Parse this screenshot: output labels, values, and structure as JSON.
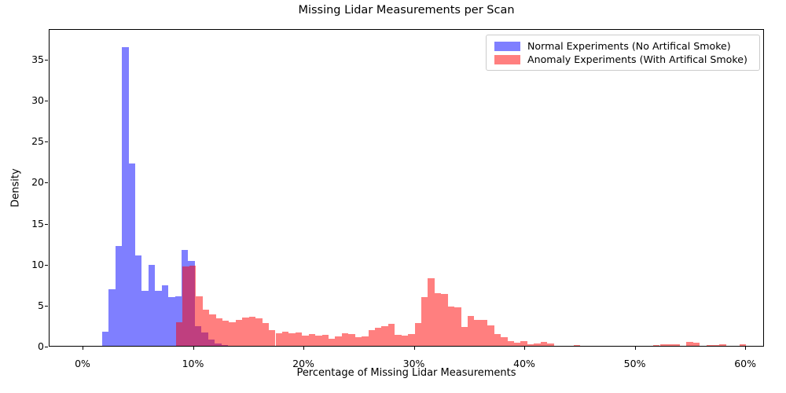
{
  "title": "Missing Lidar Measurements per Scan",
  "x_axis": {
    "label": "Percentage of Missing Lidar Measurements",
    "tick_labels": [
      "0%",
      "10%",
      "20%",
      "30%",
      "40%",
      "50%",
      "60%"
    ],
    "tick_values": [
      0,
      10,
      20,
      30,
      40,
      50,
      60
    ],
    "range_pct": [
      -3.06,
      61.7
    ]
  },
  "y_axis": {
    "label": "Density",
    "tick_labels": [
      "0",
      "5",
      "10",
      "15",
      "20",
      "25",
      "30",
      "35"
    ],
    "tick_values": [
      0,
      5,
      10,
      15,
      20,
      25,
      30,
      35
    ],
    "range": [
      0,
      38.73
    ]
  },
  "legend": {
    "items": [
      {
        "label": "Normal Experiments (No Artifical Smoke)",
        "swatch_color": "rgba(0,0,255,0.5)"
      },
      {
        "label": "Anomaly Experiments (With Artifical Smoke)",
        "swatch_color": "rgba(255,0,0,0.5)"
      }
    ]
  },
  "chart_data": {
    "type": "histogram",
    "title": "Missing Lidar Measurements per Scan",
    "xlabel": "Percentage of Missing Lidar Measurements",
    "ylabel": "Density",
    "xlim_pct": [
      -3.06,
      61.7
    ],
    "ylim": [
      0,
      38.73
    ],
    "grid": false,
    "legend_position": "upper right",
    "overlap_blend": "alpha 0.5 fills, red drawn over blue (overlap renders magenta #bf3f7f)",
    "series": [
      {
        "name": "Normal Experiments (No Artifical Smoke)",
        "fill": "rgba(0,0,255,0.5)",
        "bin_start_pct": 1.7,
        "bin_width_pct": 0.6,
        "densities": [
          1.9,
          7.1,
          12.4,
          36.6,
          22.4,
          11.2,
          6.9,
          10.1,
          6.9,
          7.6,
          6.1,
          6.2,
          11.9,
          10.5,
          2.6,
          1.8,
          1.0,
          0.5,
          0.3,
          0.2,
          0.15,
          0.1
        ]
      },
      {
        "name": "Anomaly Experiments (With Artifical Smoke)",
        "fill": "rgba(255,0,0,0.5)",
        "bin_start_pct": 8.4,
        "bin_width_pct": 0.6,
        "densities": [
          3.1,
          9.9,
          10.0,
          6.2,
          4.6,
          4.0,
          3.5,
          3.3,
          3.1,
          3.35,
          3.6,
          3.75,
          3.5,
          3.0,
          2.1,
          1.75,
          1.9,
          1.75,
          1.8,
          1.45,
          1.6,
          1.45,
          1.5,
          1.05,
          1.3,
          1.75,
          1.6,
          1.2,
          1.3,
          2.1,
          2.4,
          2.55,
          2.9,
          1.5,
          1.4,
          1.6,
          3.0,
          6.1,
          8.4,
          6.6,
          6.5,
          5.0,
          4.9,
          2.5,
          3.85,
          3.4,
          3.4,
          2.65,
          1.6,
          1.2,
          0.75,
          0.55,
          0.75,
          0.35,
          0.5,
          0.7,
          0.5,
          0.15,
          0.05,
          0.2,
          0.25,
          0,
          0,
          0,
          0,
          0,
          0.2,
          0,
          0,
          0,
          0,
          0,
          0.25,
          0.4,
          0.4,
          0.35,
          0,
          0.7,
          0.6,
          0,
          0.25,
          0.25,
          0.35,
          0.15,
          0,
          0.4
        ]
      }
    ]
  }
}
